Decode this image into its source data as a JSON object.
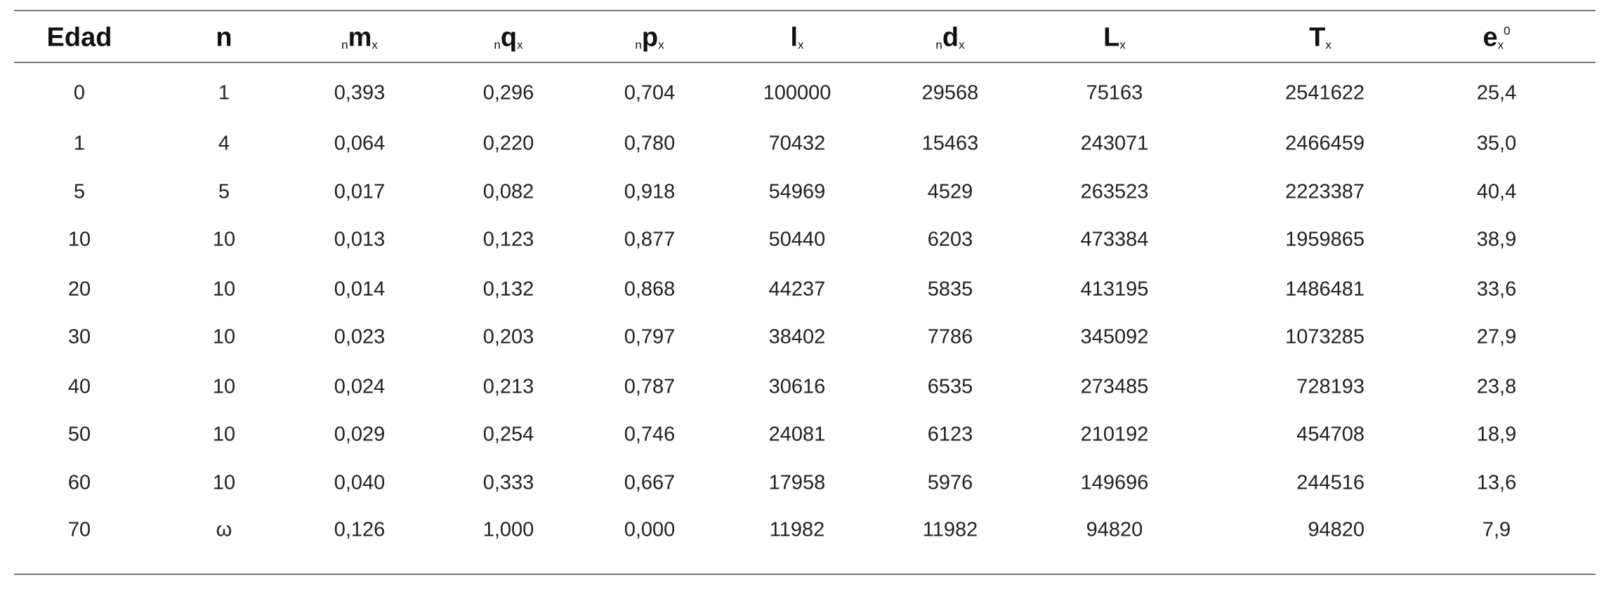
{
  "table": {
    "headers": [
      {
        "main": "Edad"
      },
      {
        "main": "n"
      },
      {
        "pre": "n",
        "main": "m",
        "post": "x"
      },
      {
        "pre": "n",
        "main": "q",
        "post": "x"
      },
      {
        "pre": "n",
        "main": "p",
        "post": "x"
      },
      {
        "main": "l",
        "post": "x"
      },
      {
        "pre": "n",
        "main": "d",
        "post": "x"
      },
      {
        "main": "L",
        "post": "x"
      },
      {
        "main": "T",
        "post": "x"
      },
      {
        "main": "e",
        "post": "x",
        "sup": "0"
      }
    ],
    "rows": [
      [
        "0",
        "1",
        "0,393",
        "0,296",
        "0,704",
        "100000",
        "29568",
        "75163",
        "2541622",
        "25,4"
      ],
      [
        "1",
        "4",
        "0,064",
        "0,220",
        "0,780",
        "70432",
        "15463",
        "243071",
        "2466459",
        "35,0"
      ],
      [
        "5",
        "5",
        "0,017",
        "0,082",
        "0,918",
        "54969",
        "4529",
        "263523",
        "2223387",
        "40,4"
      ],
      [
        "10",
        "10",
        "0,013",
        "0,123",
        "0,877",
        "50440",
        "6203",
        "473384",
        "1959865",
        "38,9"
      ],
      [
        "20",
        "10",
        "0,014",
        "0,132",
        "0,868",
        "44237",
        "5835",
        "413195",
        "1486481",
        "33,6"
      ],
      [
        "30",
        "10",
        "0,023",
        "0,203",
        "0,797",
        "38402",
        "7786",
        "345092",
        "1073285",
        "27,9"
      ],
      [
        "40",
        "10",
        "0,024",
        "0,213",
        "0,787",
        "30616",
        "6535",
        "273485",
        "728193",
        "23,8"
      ],
      [
        "50",
        "10",
        "0,029",
        "0,254",
        "0,746",
        "24081",
        "6123",
        "210192",
        "454708",
        "18,9"
      ],
      [
        "60",
        "10",
        "0,040",
        "0,333",
        "0,667",
        "17958",
        "5976",
        "149696",
        "244516",
        "13,6"
      ],
      [
        "70",
        "ω",
        "0,126",
        "1,000",
        "0,000",
        "11982",
        "11982",
        "94820",
        "94820",
        "7,9"
      ]
    ]
  }
}
